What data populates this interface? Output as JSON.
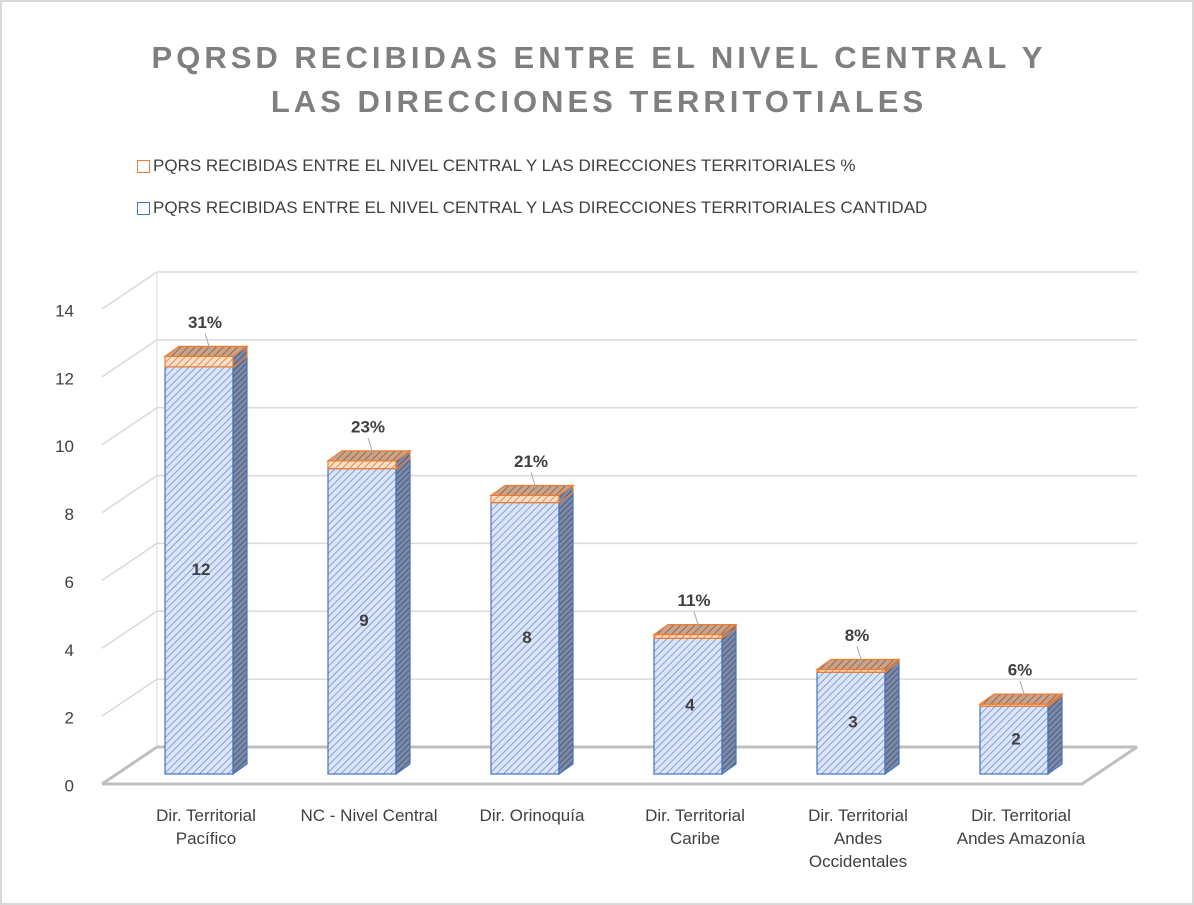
{
  "chart_data": {
    "type": "bar3d_stacked",
    "title": "PQRSD RECIBIDAS ENTRE EL NIVEL CENTRAL Y LAS DIRECCIONES TERRITOTIALES",
    "categories": [
      "Dir. Territorial Pacífico",
      "NC - Nivel Central",
      "Dir. Orinoquía",
      "Dir. Territorial Caribe",
      "Dir. Territorial Andes Occidentales",
      "Dir. Territorial Andes Amazonía"
    ],
    "series": [
      {
        "name": "PQRS RECIBIDAS ENTRE EL NIVEL CENTRAL Y LAS DIRECCIONES TERRITORIALES CANTIDAD",
        "color": "#c5d6f2",
        "values": [
          12,
          9,
          8,
          4,
          3,
          2
        ]
      },
      {
        "name": "PQRS RECIBIDAS ENTRE EL NIVEL CENTRAL Y LAS DIRECCIONES TERRITORIALES %",
        "color": "#f4b183",
        "values": [
          0.31,
          0.23,
          0.21,
          0.11,
          0.08,
          0.06
        ],
        "value_labels": [
          "31%",
          "23%",
          "21%",
          "11%",
          "8%",
          "6%"
        ]
      }
    ],
    "ylim": [
      0,
      14
    ],
    "yticks": [
      0,
      2,
      4,
      6,
      8,
      10,
      12,
      14
    ],
    "grid": true
  }
}
